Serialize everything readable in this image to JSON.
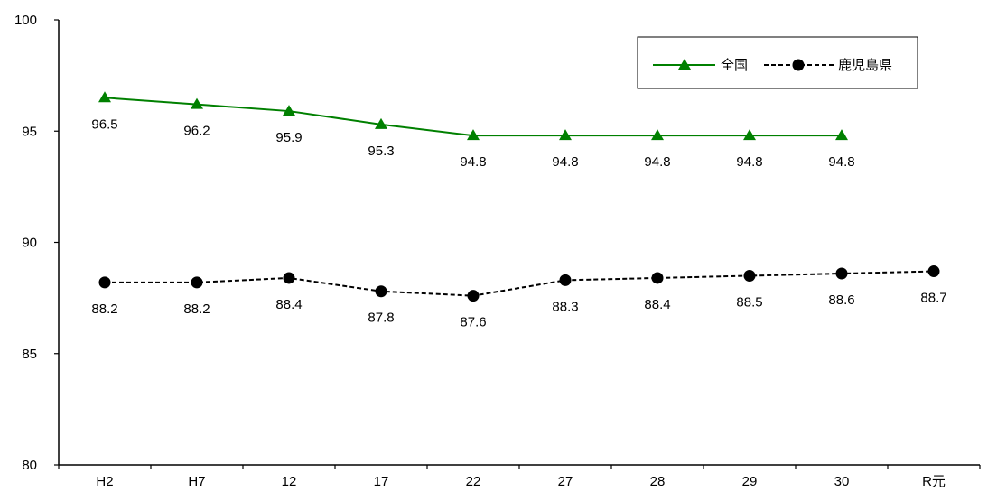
{
  "chart_data": {
    "type": "line",
    "categories": [
      "H2",
      "H7",
      "12",
      "17",
      "22",
      "27",
      "28",
      "29",
      "30",
      "R元"
    ],
    "ylim": [
      80,
      100
    ],
    "yticks": [
      80,
      85,
      90,
      95,
      100
    ],
    "grid": false,
    "legend_position": "top-right",
    "series": [
      {
        "name": "全国",
        "values": [
          96.5,
          96.2,
          95.9,
          95.3,
          94.8,
          94.8,
          94.8,
          94.8,
          94.8,
          null
        ],
        "labels": [
          "96.5",
          "96.2",
          "95.9",
          "95.3",
          "94.8",
          "94.8",
          "94.8",
          "94.8",
          "94.8",
          ""
        ],
        "color": "#008000",
        "marker": "triangle",
        "line_style": "solid"
      },
      {
        "name": "鹿児島県",
        "values": [
          88.2,
          88.2,
          88.4,
          87.8,
          87.6,
          88.3,
          88.4,
          88.5,
          88.6,
          88.7
        ],
        "labels": [
          "88.2",
          "88.2",
          "88.4",
          "87.8",
          "87.6",
          "88.3",
          "88.4",
          "88.5",
          "88.6",
          "88.7"
        ],
        "color": "#000000",
        "marker": "circle",
        "line_style": "dashed"
      }
    ]
  }
}
